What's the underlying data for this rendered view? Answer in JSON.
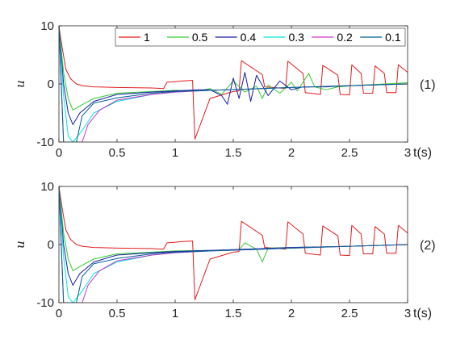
{
  "chart_data": [
    {
      "type": "line",
      "panel_label": "(1)",
      "ylabel": "u",
      "xlabel": "t(s)",
      "xlim": [
        0,
        3
      ],
      "ylim": [
        -10,
        10
      ],
      "x_ticks": [
        "0",
        "0.5",
        "1",
        "1.5",
        "2",
        "2.5",
        "3"
      ],
      "y_ticks": [
        "-10",
        "0",
        "10"
      ],
      "legend": {
        "location": "top-right",
        "orientation": "horizontal"
      },
      "series": [
        {
          "name": "1",
          "color": "#e41a1c",
          "values": [
            [
              0,
              10
            ],
            [
              0.03,
              6
            ],
            [
              0.06,
              2.5
            ],
            [
              0.1,
              0.9
            ],
            [
              0.15,
              0
            ],
            [
              0.2,
              -0.3
            ],
            [
              0.3,
              -0.5
            ],
            [
              0.5,
              -0.6
            ],
            [
              0.8,
              -0.7
            ],
            [
              0.9,
              -0.8
            ],
            [
              0.93,
              0.3
            ],
            [
              1.0,
              0.4
            ],
            [
              1.05,
              0.5
            ],
            [
              1.15,
              0.6
            ],
            [
              1.17,
              -9.5
            ],
            [
              1.3,
              -2.5
            ],
            [
              1.5,
              -1.3
            ],
            [
              1.55,
              -1.2
            ],
            [
              1.57,
              4.0
            ],
            [
              1.75,
              1.6
            ],
            [
              1.77,
              -0.5
            ],
            [
              1.85,
              -0.6
            ],
            [
              1.95,
              -0.8
            ],
            [
              1.97,
              3.9
            ],
            [
              2.1,
              1.8
            ],
            [
              2.12,
              -1.5
            ],
            [
              2.25,
              -1.8
            ],
            [
              2.27,
              3.2
            ],
            [
              2.4,
              1.5
            ],
            [
              2.42,
              -1.8
            ],
            [
              2.5,
              -1.9
            ],
            [
              2.52,
              3.3
            ],
            [
              2.6,
              1.8
            ],
            [
              2.62,
              -1.6
            ],
            [
              2.7,
              -1.6
            ],
            [
              2.72,
              3.1
            ],
            [
              2.8,
              1.8
            ],
            [
              2.82,
              -1.5
            ],
            [
              2.9,
              -1.5
            ],
            [
              2.92,
              3.3
            ],
            [
              3.0,
              2.0
            ]
          ]
        },
        {
          "name": "0.5",
          "color": "#33cc33",
          "values": [
            [
              0,
              10
            ],
            [
              0.04,
              2
            ],
            [
              0.08,
              -2.5
            ],
            [
              0.12,
              -4.5
            ],
            [
              0.18,
              -3.8
            ],
            [
              0.3,
              -2.5
            ],
            [
              0.5,
              -1.6
            ],
            [
              0.8,
              -1.3
            ],
            [
              1.0,
              -1.1
            ],
            [
              1.2,
              -1.2
            ],
            [
              1.3,
              -0.8
            ],
            [
              1.4,
              -1.8
            ],
            [
              1.5,
              0.5
            ],
            [
              1.6,
              -1.4
            ],
            [
              1.7,
              -0.4
            ],
            [
              1.75,
              -2.5
            ],
            [
              1.8,
              -0.2
            ],
            [
              1.9,
              -1.6
            ],
            [
              2.0,
              0.3
            ],
            [
              2.05,
              -1.2
            ],
            [
              2.15,
              1.8
            ],
            [
              2.2,
              -0.5
            ],
            [
              2.3,
              -1.0
            ],
            [
              2.4,
              -0.5
            ],
            [
              2.6,
              -0.2
            ],
            [
              2.8,
              0.0
            ],
            [
              3.0,
              0.2
            ]
          ]
        },
        {
          "name": "0.4",
          "color": "#1a1aaa",
          "values": [
            [
              0,
              10
            ],
            [
              0.04,
              0
            ],
            [
              0.08,
              -5
            ],
            [
              0.12,
              -7
            ],
            [
              0.18,
              -5
            ],
            [
              0.3,
              -3
            ],
            [
              0.5,
              -1.8
            ],
            [
              0.8,
              -1.4
            ],
            [
              1.0,
              -1.2
            ],
            [
              1.2,
              -1.0
            ],
            [
              1.3,
              -1.0
            ],
            [
              1.4,
              -2.0
            ],
            [
              1.45,
              -3.5
            ],
            [
              1.5,
              1.0
            ],
            [
              1.55,
              -2.5
            ],
            [
              1.6,
              2.0
            ],
            [
              1.65,
              -3.0
            ],
            [
              1.7,
              1.5
            ],
            [
              1.8,
              -2.0
            ],
            [
              1.9,
              0.5
            ],
            [
              2.0,
              -1.0
            ],
            [
              2.1,
              -0.5
            ],
            [
              2.3,
              -0.5
            ],
            [
              2.5,
              -0.3
            ],
            [
              2.8,
              -0.1
            ],
            [
              3.0,
              0.0
            ]
          ]
        },
        {
          "name": "0.3",
          "color": "#00e5e5",
          "values": [
            [
              0,
              10
            ],
            [
              0.04,
              -2
            ],
            [
              0.08,
              -9
            ],
            [
              0.12,
              -10
            ],
            [
              0.2,
              -8
            ],
            [
              0.3,
              -5
            ],
            [
              0.5,
              -3
            ],
            [
              0.8,
              -1.8
            ],
            [
              1.0,
              -1.4
            ],
            [
              1.3,
              -1.1
            ],
            [
              1.6,
              -0.9
            ],
            [
              2.0,
              -0.6
            ],
            [
              2.5,
              -0.3
            ],
            [
              3.0,
              0.0
            ]
          ]
        },
        {
          "name": "0.2",
          "color": "#cc33cc",
          "values": [
            [
              0,
              10
            ],
            [
              0.04,
              -10
            ],
            [
              0.1,
              -10
            ],
            [
              0.2,
              -10
            ],
            [
              0.25,
              -7
            ],
            [
              0.35,
              -4.5
            ],
            [
              0.5,
              -2.8
            ],
            [
              0.8,
              -1.8
            ],
            [
              1.0,
              -1.4
            ],
            [
              1.3,
              -1.1
            ],
            [
              1.6,
              -0.9
            ],
            [
              2.0,
              -0.6
            ],
            [
              2.5,
              -0.3
            ],
            [
              3.0,
              0.0
            ]
          ]
        },
        {
          "name": "0.1",
          "color": "#00608f",
          "values": [
            [
              0,
              10
            ],
            [
              0.04,
              -10
            ],
            [
              0.08,
              -10
            ],
            [
              0.15,
              -10
            ],
            [
              0.2,
              -5.5
            ],
            [
              0.3,
              -3.3
            ],
            [
              0.5,
              -2.4
            ],
            [
              0.8,
              -1.6
            ],
            [
              1.0,
              -1.3
            ],
            [
              1.3,
              -1.1
            ],
            [
              1.6,
              -0.9
            ],
            [
              2.0,
              -0.6
            ],
            [
              2.5,
              -0.3
            ],
            [
              3.0,
              0.0
            ]
          ]
        }
      ]
    },
    {
      "type": "line",
      "panel_label": "(2)",
      "ylabel": "u",
      "xlabel": "t(s)",
      "xlim": [
        0,
        3
      ],
      "ylim": [
        -10,
        10
      ],
      "x_ticks": [
        "0",
        "0.5",
        "1",
        "1.5",
        "2",
        "2.5",
        "3"
      ],
      "y_ticks": [
        "-10",
        "0",
        "10"
      ],
      "series": [
        {
          "name": "1",
          "color": "#e41a1c",
          "values": [
            [
              0,
              10
            ],
            [
              0.03,
              6
            ],
            [
              0.06,
              2.5
            ],
            [
              0.1,
              0.9
            ],
            [
              0.15,
              0
            ],
            [
              0.2,
              -0.3
            ],
            [
              0.3,
              -0.5
            ],
            [
              0.5,
              -0.6
            ],
            [
              0.8,
              -0.7
            ],
            [
              0.9,
              -0.8
            ],
            [
              0.93,
              0.3
            ],
            [
              1.0,
              0.4
            ],
            [
              1.05,
              0.5
            ],
            [
              1.15,
              0.6
            ],
            [
              1.17,
              -9.5
            ],
            [
              1.3,
              -2.5
            ],
            [
              1.5,
              -1.3
            ],
            [
              1.55,
              -1.2
            ],
            [
              1.57,
              4.0
            ],
            [
              1.75,
              1.6
            ],
            [
              1.77,
              -0.5
            ],
            [
              1.85,
              -0.6
            ],
            [
              1.95,
              -0.8
            ],
            [
              1.97,
              3.9
            ],
            [
              2.1,
              1.8
            ],
            [
              2.12,
              -1.5
            ],
            [
              2.25,
              -1.8
            ],
            [
              2.27,
              3.2
            ],
            [
              2.4,
              1.5
            ],
            [
              2.42,
              -1.8
            ],
            [
              2.5,
              -1.9
            ],
            [
              2.52,
              3.3
            ],
            [
              2.6,
              1.8
            ],
            [
              2.62,
              -1.6
            ],
            [
              2.7,
              -1.6
            ],
            [
              2.72,
              3.1
            ],
            [
              2.8,
              1.8
            ],
            [
              2.82,
              -1.5
            ],
            [
              2.9,
              -1.5
            ],
            [
              2.92,
              3.3
            ],
            [
              3.0,
              2.0
            ]
          ]
        },
        {
          "name": "0.5",
          "color": "#33cc33",
          "values": [
            [
              0,
              10
            ],
            [
              0.04,
              2
            ],
            [
              0.08,
              -2.5
            ],
            [
              0.12,
              -4.5
            ],
            [
              0.18,
              -3.8
            ],
            [
              0.3,
              -2.5
            ],
            [
              0.5,
              -1.6
            ],
            [
              0.8,
              -1.3
            ],
            [
              1.0,
              -1.1
            ],
            [
              1.3,
              -1.0
            ],
            [
              1.55,
              -0.9
            ],
            [
              1.6,
              0.3
            ],
            [
              1.7,
              -0.8
            ],
            [
              1.75,
              -3.0
            ],
            [
              1.8,
              -0.6
            ],
            [
              2.0,
              -0.5
            ],
            [
              2.5,
              -0.3
            ],
            [
              3.0,
              0.0
            ]
          ]
        },
        {
          "name": "0.4",
          "color": "#1a1aaa",
          "values": [
            [
              0,
              10
            ],
            [
              0.04,
              0
            ],
            [
              0.08,
              -5
            ],
            [
              0.12,
              -7
            ],
            [
              0.18,
              -5
            ],
            [
              0.3,
              -3
            ],
            [
              0.5,
              -1.8
            ],
            [
              0.8,
              -1.4
            ],
            [
              1.0,
              -1.2
            ],
            [
              1.3,
              -1.0
            ],
            [
              1.6,
              -0.8
            ],
            [
              2.0,
              -0.5
            ],
            [
              2.5,
              -0.3
            ],
            [
              3.0,
              0.0
            ]
          ]
        },
        {
          "name": "0.3",
          "color": "#00e5e5",
          "values": [
            [
              0,
              10
            ],
            [
              0.04,
              -2
            ],
            [
              0.08,
              -9
            ],
            [
              0.12,
              -10
            ],
            [
              0.2,
              -8
            ],
            [
              0.3,
              -5
            ],
            [
              0.5,
              -3
            ],
            [
              0.8,
              -1.8
            ],
            [
              1.0,
              -1.4
            ],
            [
              1.3,
              -1.1
            ],
            [
              1.6,
              -0.9
            ],
            [
              2.0,
              -0.6
            ],
            [
              2.5,
              -0.3
            ],
            [
              3.0,
              0.0
            ]
          ]
        },
        {
          "name": "0.2",
          "color": "#cc33cc",
          "values": [
            [
              0,
              10
            ],
            [
              0.04,
              -10
            ],
            [
              0.1,
              -10
            ],
            [
              0.2,
              -10
            ],
            [
              0.25,
              -7
            ],
            [
              0.35,
              -4.5
            ],
            [
              0.5,
              -2.8
            ],
            [
              0.8,
              -1.8
            ],
            [
              1.0,
              -1.4
            ],
            [
              1.3,
              -1.1
            ],
            [
              1.6,
              -0.9
            ],
            [
              2.0,
              -0.6
            ],
            [
              2.5,
              -0.3
            ],
            [
              3.0,
              0.0
            ]
          ]
        },
        {
          "name": "0.1",
          "color": "#00608f",
          "values": [
            [
              0,
              10
            ],
            [
              0.04,
              -10
            ],
            [
              0.08,
              -10
            ],
            [
              0.15,
              -10
            ],
            [
              0.2,
              -5.5
            ],
            [
              0.3,
              -3.3
            ],
            [
              0.5,
              -2.4
            ],
            [
              0.8,
              -1.6
            ],
            [
              1.0,
              -1.3
            ],
            [
              1.3,
              -1.1
            ],
            [
              1.6,
              -0.9
            ],
            [
              2.0,
              -0.6
            ],
            [
              2.5,
              -0.3
            ],
            [
              3.0,
              0.0
            ]
          ]
        }
      ]
    }
  ]
}
